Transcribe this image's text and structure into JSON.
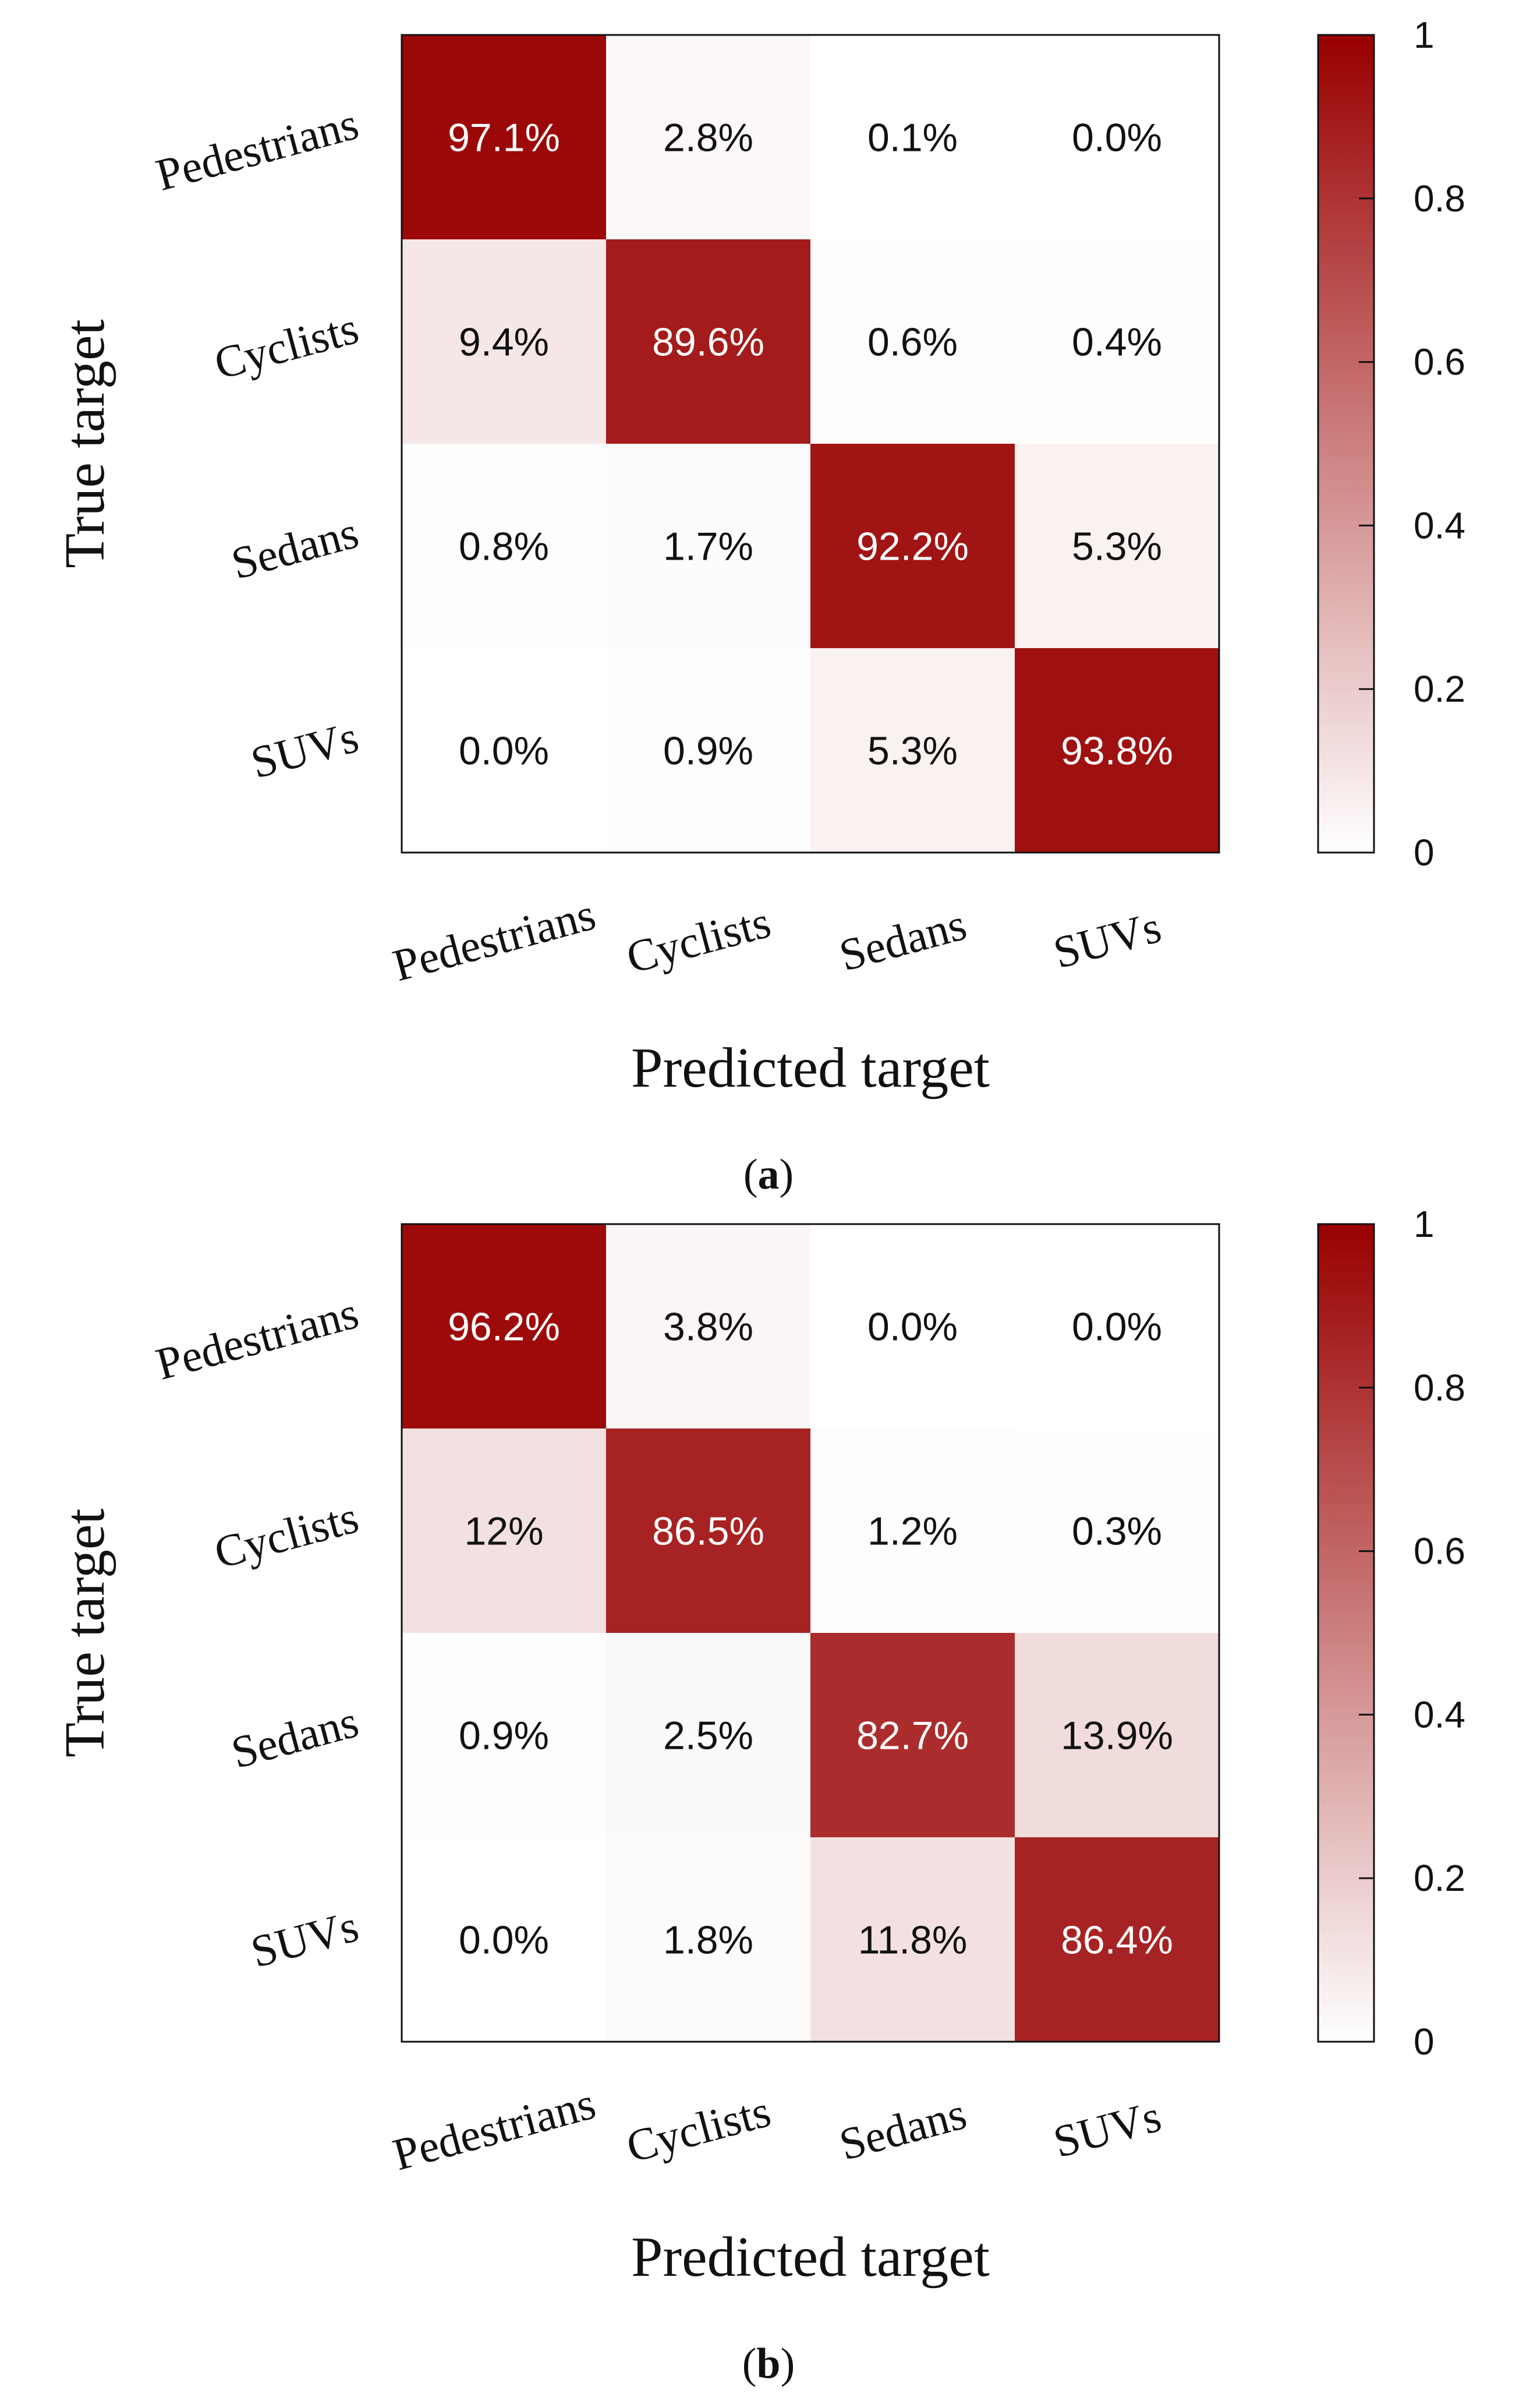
{
  "figure": {
    "colors": {
      "high": "#990000",
      "low": "#ffffff",
      "frame": "#111111",
      "text_dark": "#111111",
      "text_light": "#ffffff"
    }
  },
  "chart_data": [
    {
      "type": "heatmap",
      "subcaption": {
        "open": "(",
        "letter": "a",
        "close": ")"
      },
      "xlabel": "Predicted target",
      "ylabel": "True target",
      "x_categories": [
        "Pedestrians",
        "Cyclists",
        "Sedans",
        "SUVs"
      ],
      "y_categories": [
        "Pedestrians",
        "Cyclists",
        "Sedans",
        "SUVs"
      ],
      "values": [
        [
          0.971,
          0.028,
          0.001,
          0.0
        ],
        [
          0.094,
          0.896,
          0.006,
          0.004
        ],
        [
          0.008,
          0.017,
          0.922,
          0.053
        ],
        [
          0.0,
          0.009,
          0.053,
          0.938
        ]
      ],
      "labels": [
        [
          "97.1%",
          "2.8%",
          "0.1%",
          "0.0%"
        ],
        [
          "9.4%",
          "89.6%",
          "0.6%",
          "0.4%"
        ],
        [
          "0.8%",
          "1.7%",
          "92.2%",
          "5.3%"
        ],
        [
          "0.0%",
          "0.9%",
          "5.3%",
          "93.8%"
        ]
      ],
      "colorbar": {
        "range": [
          0,
          1
        ],
        "ticks": [
          0,
          0.2,
          0.4,
          0.6,
          0.8,
          1
        ],
        "tick_labels": [
          "0",
          "0.2",
          "0.4",
          "0.6",
          "0.8",
          "1"
        ]
      }
    },
    {
      "type": "heatmap",
      "subcaption": {
        "open": "(",
        "letter": "b",
        "close": ")"
      },
      "xlabel": "Predicted target",
      "ylabel": "True target",
      "x_categories": [
        "Pedestrians",
        "Cyclists",
        "Sedans",
        "SUVs"
      ],
      "y_categories": [
        "Pedestrians",
        "Cyclists",
        "Sedans",
        "SUVs"
      ],
      "values": [
        [
          0.962,
          0.038,
          0.0,
          0.0
        ],
        [
          0.12,
          0.865,
          0.012,
          0.003
        ],
        [
          0.009,
          0.025,
          0.827,
          0.139
        ],
        [
          0.0,
          0.018,
          0.118,
          0.864
        ]
      ],
      "labels": [
        [
          "96.2%",
          "3.8%",
          "0.0%",
          "0.0%"
        ],
        [
          "12%",
          "86.5%",
          "1.2%",
          "0.3%"
        ],
        [
          "0.9%",
          "2.5%",
          "82.7%",
          "13.9%"
        ],
        [
          "0.0%",
          "1.8%",
          "11.8%",
          "86.4%"
        ]
      ],
      "colorbar": {
        "range": [
          0,
          1
        ],
        "ticks": [
          0,
          0.2,
          0.4,
          0.6,
          0.8,
          1
        ],
        "tick_labels": [
          "0",
          "0.2",
          "0.4",
          "0.6",
          "0.8",
          "1"
        ]
      }
    }
  ]
}
